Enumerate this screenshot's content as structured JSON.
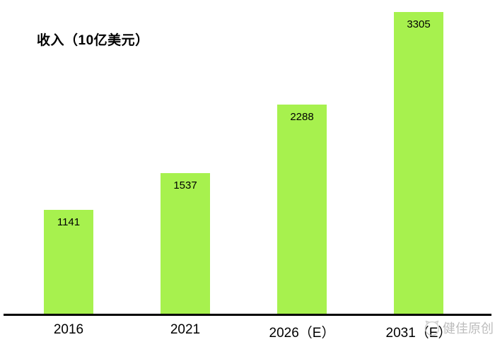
{
  "chart_data": {
    "type": "bar",
    "title": "收入（10亿美元）",
    "categories": [
      "2016",
      "2021",
      "2026（E）",
      "2031（E）"
    ],
    "values": [
      1141,
      1537,
      2288,
      3305
    ],
    "value_labels_position": "inside-top",
    "bar_color": "#a7f14e",
    "value_label_color": "#000000",
    "axis_color": "#000000",
    "xlabel": "",
    "ylabel": "",
    "ylim": [
      0,
      3440
    ],
    "grid": false,
    "legend": "none"
  },
  "watermark": {
    "text": "健佳原创",
    "icon": "cat-logo-icon",
    "color": "#bdbdbd"
  }
}
